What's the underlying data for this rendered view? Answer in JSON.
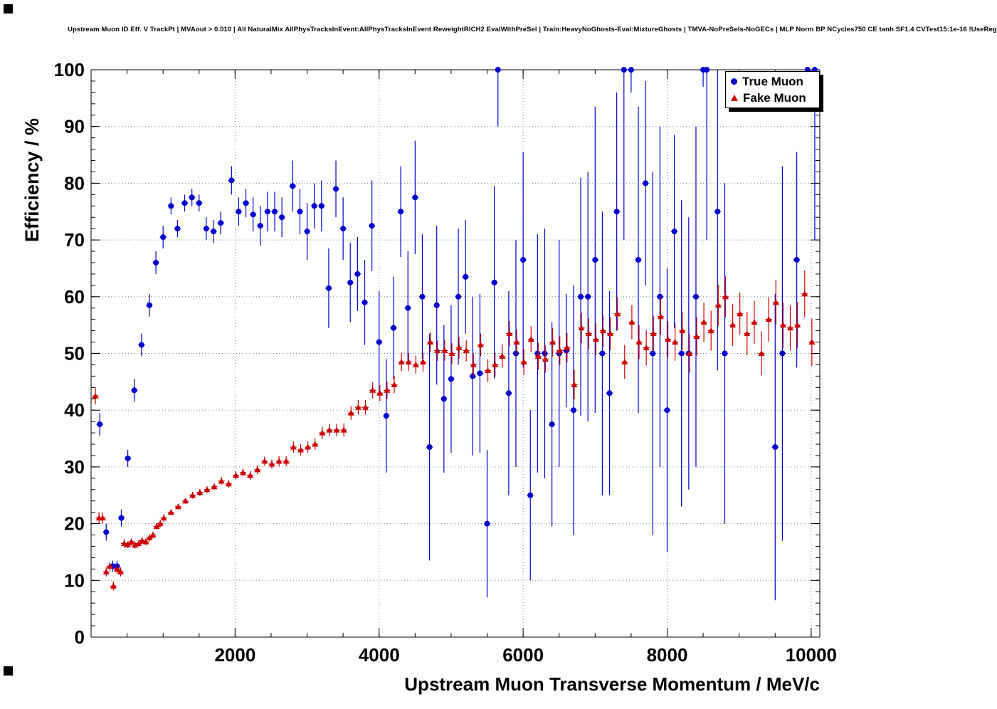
{
  "canvas": {
    "background": "#ffffff"
  },
  "chart_data": {
    "type": "scatter",
    "title": "Upstream Muon ID Eff. V TrackPt | MVAout > 0.010 | All NaturalMix AllPhysTracksInEvent:AllPhysTracksInEvent ReweightRICH2 EvalWithPreSel | Train:HeavyNoGhosts-Eval:MixtureGhosts | TMVA-NoPreSels-NoGECs | MLP Norm BP NCycles750 CE tanh SF1.4 CVTest15:1e-16 !UseReg",
    "xlabel": "Upstream Muon Transverse Momentum / MeV/c",
    "ylabel": "Efficiency / %",
    "xlim": [
      0,
      10120
    ],
    "ylim": [
      0,
      100
    ],
    "x_ticks": [
      2000,
      4000,
      6000,
      8000,
      10000
    ],
    "y_ticks": [
      0,
      10,
      20,
      30,
      40,
      50,
      60,
      70,
      80,
      90,
      100
    ],
    "x_minor_step": 500,
    "y_minor_step": 2,
    "grid": true,
    "grid_color": "#888888",
    "frame_color": "#000000",
    "legend": {
      "position": "top-right",
      "entries": [
        {
          "label": "True Muon",
          "marker": "circle",
          "color": "#0000cc"
        },
        {
          "label": "Fake Muon",
          "marker": "triangle",
          "color": "#cc0000"
        }
      ]
    },
    "series": [
      {
        "name": "True Muon",
        "marker": "circle",
        "color": "#0000cc",
        "xerr": 45,
        "points": [
          [
            120,
            37.5,
            2
          ],
          [
            210,
            18.5,
            1.5
          ],
          [
            300,
            12.5,
            1
          ],
          [
            360,
            12.5,
            1
          ],
          [
            420,
            21,
            1.5
          ],
          [
            510,
            31.5,
            1.5
          ],
          [
            600,
            43.5,
            2
          ],
          [
            700,
            51.5,
            2
          ],
          [
            810,
            58.5,
            2
          ],
          [
            900,
            66,
            2
          ],
          [
            1000,
            70.5,
            2
          ],
          [
            1110,
            76,
            1.5
          ],
          [
            1200,
            72,
            1.5
          ],
          [
            1300,
            76.5,
            1.5
          ],
          [
            1400,
            77.5,
            1.5
          ],
          [
            1500,
            76.5,
            1.5
          ],
          [
            1600,
            72,
            2
          ],
          [
            1700,
            71.5,
            2
          ],
          [
            1800,
            73,
            2
          ],
          [
            1950,
            80.5,
            2.5
          ],
          [
            2050,
            75,
            2.5
          ],
          [
            2150,
            76.5,
            2.5
          ],
          [
            2250,
            74.5,
            3
          ],
          [
            2350,
            72.5,
            3.5
          ],
          [
            2450,
            75,
            3.5
          ],
          [
            2550,
            75,
            3.5
          ],
          [
            2650,
            74,
            3.5
          ],
          [
            2800,
            79.5,
            4.5
          ],
          [
            2900,
            75,
            4
          ],
          [
            3000,
            71.5,
            5
          ],
          [
            3100,
            76,
            4
          ],
          [
            3200,
            76,
            4.5
          ],
          [
            3300,
            61.5,
            7
          ],
          [
            3400,
            79,
            5
          ],
          [
            3500,
            72,
            5.5
          ],
          [
            3600,
            62.5,
            7
          ],
          [
            3700,
            64,
            6.5
          ],
          [
            3800,
            59,
            7.5
          ],
          [
            3900,
            72.5,
            8
          ],
          [
            4000,
            52,
            9
          ],
          [
            4100,
            39,
            10
          ],
          [
            4200,
            54.5,
            9
          ],
          [
            4300,
            75,
            8
          ],
          [
            4400,
            58,
            10
          ],
          [
            4500,
            77.5,
            10
          ],
          [
            4600,
            60,
            11
          ],
          [
            4700,
            33.5,
            20
          ],
          [
            4800,
            58.5,
            14
          ],
          [
            4900,
            42,
            13
          ],
          [
            5000,
            45.5,
            13
          ],
          [
            5100,
            60,
            12
          ],
          [
            5200,
            63.5,
            10
          ],
          [
            5300,
            46,
            14
          ],
          [
            5400,
            46.5,
            14
          ],
          [
            5500,
            20,
            13
          ],
          [
            5600,
            62.5,
            17
          ],
          [
            5650,
            100,
            10
          ],
          [
            5800,
            43,
            18
          ],
          [
            5900,
            50,
            20
          ],
          [
            6000,
            66.5,
            19
          ],
          [
            6100,
            25,
            15
          ],
          [
            6200,
            50,
            21
          ],
          [
            6300,
            50,
            22
          ],
          [
            6400,
            37.5,
            18
          ],
          [
            6500,
            50,
            20
          ],
          [
            6600,
            50.5,
            10
          ],
          [
            6700,
            40,
            22
          ],
          [
            6800,
            60,
            21
          ],
          [
            6900,
            60,
            22
          ],
          [
            7000,
            66.5,
            27
          ],
          [
            7100,
            50,
            25
          ],
          [
            7200,
            43,
            18
          ],
          [
            7300,
            75,
            21
          ],
          [
            7400,
            100,
            30
          ],
          [
            7500,
            100,
            4
          ],
          [
            7600,
            66.5,
            27
          ],
          [
            7700,
            80,
            18
          ],
          [
            7800,
            50,
            32
          ],
          [
            7900,
            60,
            30
          ],
          [
            8000,
            40,
            25
          ],
          [
            8100,
            71.5,
            17
          ],
          [
            8200,
            50,
            27
          ],
          [
            8300,
            50,
            24
          ],
          [
            8400,
            60,
            30
          ],
          [
            8500,
            100,
            3
          ],
          [
            8550,
            100,
            30
          ],
          [
            8700,
            75,
            28
          ],
          [
            8800,
            50,
            30
          ],
          [
            9500,
            33.5,
            27
          ],
          [
            9600,
            50,
            33
          ],
          [
            9800,
            66.5,
            19
          ],
          [
            9950,
            100,
            5
          ],
          [
            10050,
            100,
            30
          ]
        ]
      },
      {
        "name": "Fake Muon",
        "marker": "triangle",
        "color": "#cc0000",
        "xerr": 45,
        "points": [
          [
            60,
            42.5,
            1.5
          ],
          [
            110,
            21,
            1
          ],
          [
            160,
            21,
            1
          ],
          [
            210,
            11.5,
            0.8
          ],
          [
            260,
            12.5,
            0.8
          ],
          [
            310,
            9,
            0.8
          ],
          [
            360,
            12,
            0.8
          ],
          [
            410,
            11.5,
            0.8
          ],
          [
            460,
            16.5,
            0.8
          ],
          [
            510,
            16.3,
            0.6
          ],
          [
            560,
            16.8,
            0.6
          ],
          [
            610,
            16.2,
            0.6
          ],
          [
            660,
            16.5,
            0.6
          ],
          [
            710,
            17,
            0.6
          ],
          [
            760,
            16.8,
            0.6
          ],
          [
            810,
            17.5,
            0.6
          ],
          [
            860,
            18,
            0.6
          ],
          [
            910,
            19.5,
            0.6
          ],
          [
            960,
            20,
            0.7
          ],
          [
            1010,
            21,
            0.7
          ],
          [
            1110,
            22,
            0.5
          ],
          [
            1210,
            23,
            0.5
          ],
          [
            1310,
            24,
            0.5
          ],
          [
            1410,
            25,
            0.6
          ],
          [
            1510,
            25.5,
            0.6
          ],
          [
            1610,
            26,
            0.6
          ],
          [
            1710,
            26.5,
            0.6
          ],
          [
            1810,
            27.5,
            0.7
          ],
          [
            1910,
            27,
            0.7
          ],
          [
            2010,
            28.5,
            0.7
          ],
          [
            2110,
            29,
            0.7
          ],
          [
            2210,
            28.5,
            0.8
          ],
          [
            2310,
            29.5,
            0.8
          ],
          [
            2410,
            31,
            0.8
          ],
          [
            2510,
            30.5,
            0.8
          ],
          [
            2610,
            31,
            0.9
          ],
          [
            2710,
            31,
            0.9
          ],
          [
            2810,
            33.5,
            1
          ],
          [
            2910,
            33,
            1
          ],
          [
            3010,
            33.5,
            1
          ],
          [
            3110,
            34,
            1
          ],
          [
            3210,
            36,
            1.1
          ],
          [
            3310,
            36.5,
            1.1
          ],
          [
            3410,
            36.5,
            1.1
          ],
          [
            3510,
            36.5,
            1.2
          ],
          [
            3610,
            39.5,
            1.2
          ],
          [
            3710,
            40.5,
            1.3
          ],
          [
            3810,
            40.5,
            1.3
          ],
          [
            3910,
            43.5,
            1.4
          ],
          [
            4010,
            43,
            1.4
          ],
          [
            4110,
            43.5,
            1.5
          ],
          [
            4210,
            44.5,
            1.5
          ],
          [
            4310,
            48.5,
            1.6
          ],
          [
            4410,
            48.5,
            1.6
          ],
          [
            4510,
            48,
            1.6
          ],
          [
            4610,
            48.5,
            1.7
          ],
          [
            4710,
            52,
            1.7
          ],
          [
            4810,
            50.5,
            1.8
          ],
          [
            4910,
            50.5,
            1.8
          ],
          [
            5010,
            50,
            1.8
          ],
          [
            5110,
            51,
            1.9
          ],
          [
            5210,
            50.5,
            1.9
          ],
          [
            5310,
            48,
            2
          ],
          [
            5410,
            51.5,
            2
          ],
          [
            5510,
            47,
            2
          ],
          [
            5610,
            48,
            2.1
          ],
          [
            5710,
            49.5,
            2.1
          ],
          [
            5810,
            53.5,
            2.2
          ],
          [
            5910,
            52,
            2.2
          ],
          [
            6010,
            48.5,
            2.3
          ],
          [
            6110,
            52.5,
            2.3
          ],
          [
            6210,
            49.5,
            2.4
          ],
          [
            6310,
            49,
            2.4
          ],
          [
            6410,
            52,
            2.5
          ],
          [
            6510,
            50.5,
            2.5
          ],
          [
            6610,
            51,
            2.6
          ],
          [
            6710,
            44.5,
            2.6
          ],
          [
            6810,
            54.5,
            2.7
          ],
          [
            6910,
            53.5,
            2.7
          ],
          [
            7010,
            52.5,
            2.8
          ],
          [
            7110,
            54,
            2.8
          ],
          [
            7210,
            53.5,
            2.9
          ],
          [
            7310,
            57,
            2.9
          ],
          [
            7410,
            48.5,
            3
          ],
          [
            7510,
            55.5,
            3
          ],
          [
            7610,
            52,
            3
          ],
          [
            7710,
            51,
            3.1
          ],
          [
            7810,
            53.5,
            3.1
          ],
          [
            7910,
            56.5,
            3.2
          ],
          [
            8010,
            52.5,
            3.2
          ],
          [
            8110,
            52,
            3.3
          ],
          [
            8210,
            54,
            3.3
          ],
          [
            8310,
            50,
            3.4
          ],
          [
            8410,
            53,
            3.4
          ],
          [
            8510,
            55.5,
            3.5
          ],
          [
            8610,
            54,
            3.5
          ],
          [
            8710,
            58.5,
            3.6
          ],
          [
            8810,
            60,
            3.6
          ],
          [
            8910,
            55,
            3.7
          ],
          [
            9010,
            57,
            3.7
          ],
          [
            9110,
            53.5,
            3.8
          ],
          [
            9210,
            55.5,
            3.8
          ],
          [
            9310,
            50,
            3.9
          ],
          [
            9410,
            56,
            3.9
          ],
          [
            9510,
            59,
            4
          ],
          [
            9610,
            55,
            4
          ],
          [
            9710,
            54.5,
            4
          ],
          [
            9810,
            55,
            4.1
          ],
          [
            9910,
            60.5,
            4.1
          ],
          [
            10010,
            52,
            4.2
          ]
        ]
      }
    ]
  }
}
